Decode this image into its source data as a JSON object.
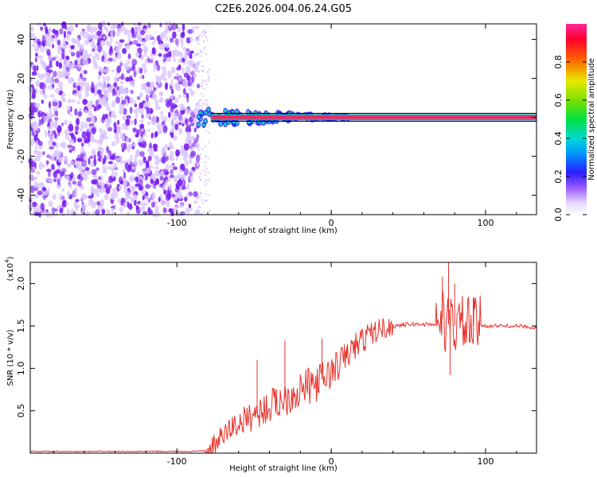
{
  "title": "C2E6.2026.004.06.24.G05",
  "colors": {
    "snr_line": "#e8302a",
    "noise": "#7a1ff0",
    "noise_light": "#d9c6ff",
    "ridge": "#ff1f6e",
    "frame": "#000000"
  },
  "chart_data": [
    {
      "type": "heatmap",
      "title": "C2E6.2026.004.06.24.G05",
      "xlabel": "Height of straight line (km)",
      "ylabel": "Frequency (Hz)",
      "xlim": [
        -195,
        133
      ],
      "ylim": [
        -50,
        48
      ],
      "xticks": [
        -100,
        0,
        100
      ],
      "yticks": [
        -40,
        -20,
        0,
        20,
        40
      ],
      "xtick_labels": [
        "-100",
        "0",
        "100"
      ],
      "ytick_labels": [
        "-40",
        "-20",
        "0",
        "20",
        "40"
      ],
      "noise_region_x": [
        -195,
        -86
      ],
      "ridge_frequency": 0,
      "colorbar": {
        "label": "Normalized spectral amplitude",
        "range": [
          0,
          1
        ],
        "ticks": [
          "0.0",
          "0.2",
          "0.4",
          "0.6",
          "0.8"
        ],
        "tick_values": [
          0,
          0.2,
          0.4,
          0.6,
          0.8
        ]
      }
    },
    {
      "type": "line",
      "xlabel": "Height of straight line (km)",
      "ylabel": "SNR (10 * v/v)",
      "y_multiplier": "(x10",
      "y_exponent": "4",
      "y_multiplier_close": ")",
      "xlim": [
        -195,
        133
      ],
      "ylim": [
        0,
        2.25
      ],
      "xticks": [
        -100,
        0,
        100
      ],
      "yticks": [
        0.5,
        1.0,
        1.5,
        2.0
      ],
      "xtick_labels": [
        "-100",
        "0",
        "100"
      ],
      "ytick_labels": [
        "0.5",
        "1.0",
        "1.5",
        "2.0"
      ],
      "series": [
        {
          "x": [
            -195,
            -160,
            -120,
            -90,
            -80,
            -78,
            -75,
            -70,
            -65,
            -60,
            -55,
            -50,
            -45,
            -40,
            -35,
            -30,
            -25,
            -20,
            -15,
            -10,
            -5,
            0,
            5,
            10,
            15,
            20,
            25,
            30,
            35,
            40,
            45,
            50,
            55,
            60,
            65,
            70,
            72,
            75,
            78,
            80,
            85,
            90,
            95,
            97,
            100,
            110,
            120,
            133
          ],
          "y": [
            0.02,
            0.02,
            0.02,
            0.02,
            0.03,
            0.05,
            0.12,
            0.2,
            0.3,
            0.35,
            0.4,
            0.45,
            0.5,
            0.55,
            0.6,
            0.65,
            0.7,
            0.75,
            0.78,
            0.82,
            0.88,
            0.95,
            1.05,
            1.15,
            1.25,
            1.33,
            1.4,
            1.45,
            1.48,
            1.5,
            1.51,
            1.52,
            1.52,
            1.52,
            1.52,
            1.53,
            1.6,
            1.5,
            1.55,
            1.5,
            1.52,
            1.5,
            1.5,
            1.51,
            1.5,
            1.5,
            1.5,
            1.48
          ]
        }
      ],
      "spikes": [
        {
          "x": -30,
          "y": 1.33
        },
        {
          "x": -48,
          "y": 1.1
        },
        {
          "x": -6,
          "y": 1.35
        },
        {
          "x": 10,
          "y": 1.25
        },
        {
          "x": 72,
          "y": 2.08
        },
        {
          "x": 76,
          "y": 2.25
        },
        {
          "x": 80,
          "y": 2.0
        },
        {
          "x": 77,
          "y": 0.92
        },
        {
          "x": 92,
          "y": 1.83
        }
      ]
    }
  ]
}
